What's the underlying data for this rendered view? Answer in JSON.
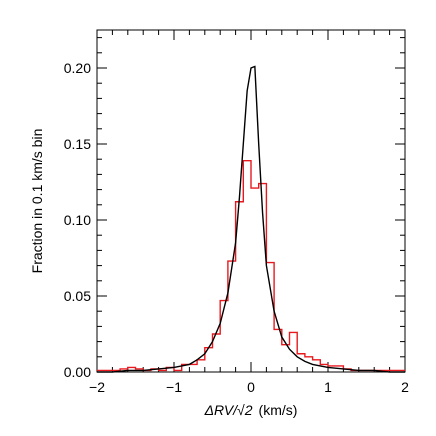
{
  "chart_data": {
    "type": "line",
    "xlabel_prefix": "ΔRV/√2",
    "xlabel_units": "(km/s)",
    "ylabel": "Fraction in 0.1 km/s bin",
    "xlim": [
      -2,
      2
    ],
    "ylim": [
      0,
      0.225
    ],
    "x_ticks": [
      -2,
      -1,
      0,
      1,
      2
    ],
    "x_tick_labels": [
      "−2",
      "−1",
      "0",
      "1",
      "2"
    ],
    "y_ticks": [
      0.0,
      0.05,
      0.1,
      0.15,
      0.2
    ],
    "y_tick_labels": [
      "0.00",
      "0.05",
      "0.10",
      "0.15",
      "0.20"
    ],
    "grid": false,
    "series": [
      {
        "style": "step",
        "color": "#e8191e",
        "bin_width": 0.1,
        "bin_left_edges": [
          -2.0,
          -1.9,
          -1.8,
          -1.7,
          -1.6,
          -1.5,
          -1.4,
          -1.3,
          -1.2,
          -1.1,
          -1.0,
          -0.9,
          -0.8,
          -0.7,
          -0.6,
          -0.5,
          -0.4,
          -0.3,
          -0.2,
          -0.1,
          0.0,
          0.1,
          0.2,
          0.3,
          0.4,
          0.5,
          0.6,
          0.7,
          0.8,
          0.9,
          1.0,
          1.1,
          1.2,
          1.3,
          1.4,
          1.5,
          1.6,
          1.7,
          1.8,
          1.9
        ],
        "values": [
          0.001,
          0.001,
          0.001,
          0.002,
          0.003,
          0.002,
          0.001,
          0.002,
          0.001,
          0.003,
          0.001,
          0.005,
          0.005,
          0.008,
          0.016,
          0.025,
          0.047,
          0.073,
          0.112,
          0.139,
          0.121,
          0.124,
          0.072,
          0.028,
          0.018,
          0.026,
          0.012,
          0.01,
          0.008,
          0.005,
          0.004,
          0.004,
          0.002,
          0.001,
          0.001,
          0.001,
          0.001,
          0.001,
          0.001,
          0.001
        ]
      },
      {
        "style": "line",
        "color": "#000000",
        "x": [
          -2.0,
          -1.8,
          -1.6,
          -1.4,
          -1.2,
          -1.0,
          -0.9,
          -0.8,
          -0.7,
          -0.6,
          -0.5,
          -0.4,
          -0.3,
          -0.2,
          -0.15,
          -0.1,
          -0.05,
          0.0,
          0.05,
          0.1,
          0.15,
          0.2,
          0.3,
          0.4,
          0.5,
          0.6,
          0.7,
          0.8,
          0.9,
          1.0,
          1.2,
          1.4,
          1.6,
          1.8,
          2.0
        ],
        "y": [
          0.0,
          0.0,
          0.001,
          0.001,
          0.002,
          0.003,
          0.004,
          0.005,
          0.008,
          0.012,
          0.02,
          0.032,
          0.052,
          0.085,
          0.115,
          0.15,
          0.185,
          0.2,
          0.201,
          0.15,
          0.105,
          0.07,
          0.04,
          0.023,
          0.015,
          0.01,
          0.007,
          0.005,
          0.004,
          0.003,
          0.002,
          0.001,
          0.001,
          0.0,
          0.0
        ]
      }
    ]
  }
}
